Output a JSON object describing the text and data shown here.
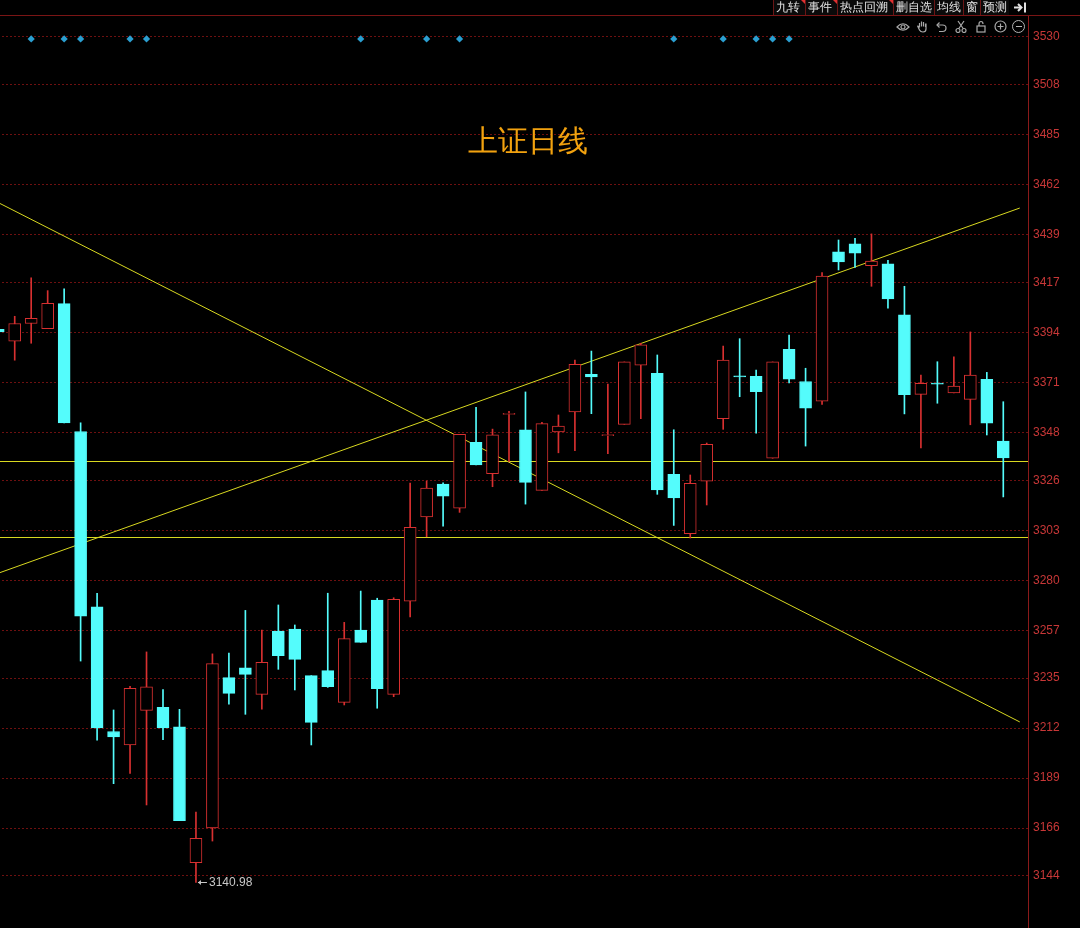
{
  "chart_data": {
    "type": "candlestick",
    "title": "上证日线",
    "categories": [
      null,
      null,
      null,
      null,
      null,
      null,
      null,
      null,
      null,
      null,
      null,
      null,
      null,
      null,
      null,
      null,
      null,
      null,
      null,
      null,
      null,
      null,
      null,
      null,
      null,
      null,
      null,
      null,
      null,
      null,
      null,
      null,
      null,
      null,
      null,
      null,
      null,
      null,
      null,
      null,
      null,
      null,
      null,
      null,
      null,
      null,
      null,
      null,
      null,
      null,
      null,
      null,
      null,
      null,
      null,
      null,
      null,
      null,
      null,
      null,
      null,
      null,
      null
    ],
    "ohlc": [
      [
        3395.4,
        3395.4,
        3394.2,
        3394.2
      ],
      [
        3389.9,
        3401.4,
        3381.2,
        3398.1
      ],
      [
        3398.1,
        3419.1,
        3389.0,
        3400.5
      ],
      [
        3395.7,
        3413.2,
        3395.7,
        3407.4
      ],
      [
        3407.2,
        3414.0,
        3352.4,
        3352.4
      ],
      [
        3348.4,
        3352.4,
        3242.8,
        3263.4
      ],
      [
        3267.8,
        3274.0,
        3206.4,
        3212.0
      ],
      [
        3210.4,
        3220.3,
        3186.4,
        3207.9
      ],
      [
        3204.2,
        3231.2,
        3191.1,
        3230.3
      ],
      [
        3220.1,
        3247.0,
        3176.6,
        3230.9
      ],
      [
        3221.5,
        3229.7,
        3206.6,
        3212.0
      ],
      [
        3212.6,
        3220.6,
        3169.4,
        3169.4
      ],
      [
        3150.0,
        3173.3,
        3140.98,
        3161.3
      ],
      [
        3166.0,
        3246.1,
        3160.0,
        3241.6
      ],
      [
        3235.2,
        3246.5,
        3223.0,
        3227.9
      ],
      [
        3239.7,
        3266.1,
        3218.3,
        3236.7
      ],
      [
        3227.5,
        3257.1,
        3220.7,
        3242.2
      ],
      [
        3256.6,
        3268.6,
        3239.0,
        3245.3
      ],
      [
        3257.5,
        3259.4,
        3229.5,
        3243.6
      ],
      [
        3236.1,
        3236.1,
        3204.2,
        3214.6
      ],
      [
        3238.4,
        3274.0,
        3230.7,
        3231.0
      ],
      [
        3223.8,
        3260.6,
        3222.6,
        3253.1
      ],
      [
        3257.1,
        3275.0,
        3251.4,
        3251.4
      ],
      [
        3270.9,
        3271.7,
        3221.1,
        3230.1
      ],
      [
        3227.5,
        3271.9,
        3226.4,
        3271.2
      ],
      [
        3270.3,
        3324.7,
        3263.1,
        3304.3
      ],
      [
        3309.1,
        3325.6,
        3300.0,
        3322.4
      ],
      [
        3324.2,
        3324.8,
        3304.9,
        3318.7
      ],
      [
        3313.1,
        3347.1,
        3311.2,
        3347.1
      ],
      [
        3343.4,
        3359.5,
        3333.0,
        3333.0
      ],
      [
        3329.0,
        3349.5,
        3323.0,
        3346.9
      ],
      [
        3356.3,
        3357.7,
        3334.5,
        3356.3
      ],
      [
        3349.2,
        3366.6,
        3315.0,
        3325.0
      ],
      [
        3321.3,
        3352.6,
        3321.3,
        3352.0
      ],
      [
        3348.2,
        3356.0,
        3338.6,
        3350.9
      ],
      [
        3357.4,
        3381.3,
        3339.6,
        3379.3
      ],
      [
        3374.7,
        3385.4,
        3356.6,
        3373.5
      ],
      [
        3346.5,
        3370.2,
        3338.2,
        3346.5
      ],
      [
        3351.7,
        3380.4,
        3351.7,
        3380.4
      ],
      [
        3378.9,
        3389.0,
        3354.3,
        3388.3
      ],
      [
        3375.2,
        3383.6,
        3319.5,
        3321.5
      ],
      [
        3328.7,
        3349.2,
        3305.2,
        3317.8
      ],
      [
        3301.4,
        3328.4,
        3299.4,
        3324.6
      ],
      [
        3325.5,
        3343.1,
        3314.6,
        3342.5
      ],
      [
        3354.3,
        3387.7,
        3349.4,
        3381.2
      ],
      [
        3374.0,
        3391.1,
        3364.4,
        3373.5
      ],
      [
        3373.8,
        3376.6,
        3347.6,
        3366.7
      ],
      [
        3336.1,
        3380.4,
        3336.1,
        3380.4
      ],
      [
        3386.2,
        3392.8,
        3370.8,
        3372.5
      ],
      [
        3371.4,
        3377.5,
        3341.7,
        3359.1
      ],
      [
        3362.4,
        3421.5,
        3360.9,
        3419.9
      ],
      [
        3431.0,
        3436.5,
        3422.7,
        3426.4
      ],
      [
        3434.7,
        3437.3,
        3423.9,
        3430.4
      ],
      [
        3424.7,
        3439.3,
        3415.2,
        3426.8
      ],
      [
        3425.5,
        3427.2,
        3405.1,
        3409.4
      ],
      [
        3402.1,
        3415.2,
        3356.5,
        3365.3
      ],
      [
        3365.5,
        3374.3,
        3340.9,
        3370.6
      ],
      [
        3370.6,
        3380.5,
        3361.4,
        3370.2
      ],
      [
        3366.2,
        3382.7,
        3366.2,
        3369.3
      ],
      [
        3363.2,
        3394.2,
        3351.5,
        3374.3
      ],
      [
        3372.4,
        3375.6,
        3346.8,
        3352.2
      ],
      [
        3344.0,
        3362.1,
        3318.3,
        3336.3
      ],
      null
    ],
    "colors": [
      "#54fcfc",
      "#d83030",
      "#d83030",
      "#d83030",
      "#54fcfc",
      "#54fcfc",
      "#54fcfc",
      "#54fcfc",
      "#d83030",
      "#d83030",
      "#54fcfc",
      "#54fcfc",
      "#d83030",
      "#d83030",
      "#54fcfc",
      "#54fcfc",
      "#d83030",
      "#54fcfc",
      "#54fcfc",
      "#54fcfc",
      "#54fcfc",
      "#d83030",
      "#54fcfc",
      "#54fcfc",
      "#d83030",
      "#d83030",
      "#d83030",
      "#54fcfc",
      "#d83030",
      "#54fcfc",
      "#d83030",
      "#d83030",
      "#54fcfc",
      "#d83030",
      "#d83030",
      "#d83030",
      "#54fcfc",
      "#d83030",
      "#d83030",
      "#d83030",
      "#54fcfc",
      "#54fcfc",
      "#d83030",
      "#d83030",
      "#d83030",
      "#54fcfc",
      "#54fcfc",
      "#d83030",
      "#54fcfc",
      "#54fcfc",
      "#d83030",
      "#54fcfc",
      "#54fcfc",
      "#d83030",
      "#54fcfc",
      "#54fcfc",
      "#d83030",
      "#54fcfc",
      "#d83030",
      "#d83030",
      "#54fcfc",
      "#54fcfc",
      null
    ],
    "series": [
      {
        "type": "line",
        "color": "#d8d820",
        "values": [
          3453.7,
          null,
          null,
          null,
          null,
          null,
          null,
          null,
          null,
          null,
          null,
          null,
          null,
          null,
          null,
          null,
          null,
          null,
          null,
          null,
          null,
          null,
          null,
          null,
          null,
          null,
          null,
          null,
          null,
          null,
          null,
          null,
          null,
          null,
          null,
          null,
          null,
          null,
          null,
          null,
          null,
          null,
          null,
          null,
          null,
          null,
          null,
          null,
          null,
          null,
          null,
          null,
          null,
          null,
          null,
          null,
          null,
          null,
          null,
          null,
          null,
          null,
          3214.8
        ]
      },
      {
        "type": "line",
        "color": "#d8d820",
        "values": [
          3283.2,
          null,
          null,
          null,
          null,
          null,
          null,
          null,
          null,
          null,
          null,
          null,
          null,
          null,
          null,
          null,
          null,
          null,
          null,
          null,
          null,
          null,
          null,
          null,
          null,
          null,
          null,
          null,
          null,
          null,
          null,
          null,
          null,
          null,
          null,
          null,
          null,
          null,
          null,
          null,
          null,
          null,
          null,
          null,
          null,
          null,
          null,
          null,
          null,
          null,
          null,
          null,
          null,
          null,
          null,
          null,
          null,
          null,
          null,
          null,
          null,
          null,
          3451.2
        ]
      },
      {
        "type": "scatter",
        "marker": "diamond",
        "color": "#2b9fd1",
        "values": [
          null,
          null,
          3529,
          null,
          3529,
          3529,
          null,
          null,
          3529,
          3529,
          null,
          null,
          null,
          null,
          null,
          null,
          null,
          null,
          null,
          null,
          null,
          null,
          3529,
          null,
          null,
          null,
          3529,
          null,
          3529,
          null,
          null,
          null,
          null,
          null,
          null,
          null,
          null,
          null,
          null,
          null,
          null,
          3529,
          null,
          null,
          3529,
          null,
          3529,
          3529,
          3529,
          null,
          null,
          null,
          null,
          null,
          null,
          null,
          null,
          null,
          null,
          null,
          null,
          null,
          null
        ]
      }
    ],
    "ref_lines": [
      {
        "axis": "y",
        "value": 3334.8,
        "color": "#d8d820"
      },
      {
        "axis": "y",
        "value": 3299.7,
        "color": "#d8d820"
      }
    ],
    "annotations": [
      "九转",
      "事件",
      "热点回溯",
      "删自选",
      "均线",
      "窗",
      "预测",
      "3140.98"
    ],
    "ylim": [
      3120,
      3540
    ],
    "yticks": [
      3530,
      3508,
      3485,
      3462,
      3439,
      3417,
      3394,
      3371,
      3348,
      3326,
      3303,
      3280,
      3257,
      3235,
      3212,
      3189,
      3166,
      3144
    ],
    "grid": "y",
    "tick_labels": "y"
  }
}
